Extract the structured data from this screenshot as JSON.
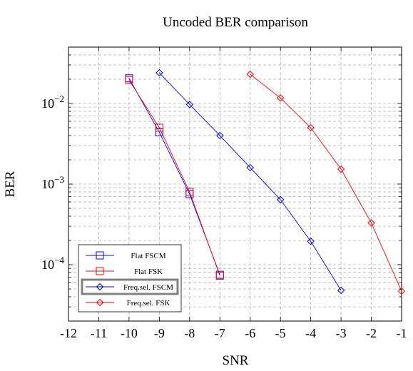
{
  "chart_data": {
    "type": "line",
    "title": "Uncoded BER comparison",
    "xlabel": "SNR",
    "ylabel": "BER",
    "xlim": [
      -12,
      -1
    ],
    "ylim": [
      2e-05,
      0.05
    ],
    "yscale": "log",
    "x_ticks": [
      -12,
      -11,
      -10,
      -9,
      -8,
      -7,
      -6,
      -5,
      -4,
      -3,
      -2,
      -1
    ],
    "x_tick_labels": [
      "-12",
      "-11",
      "-10",
      "-9",
      "-8",
      "-7",
      "-6",
      "-5",
      "-4",
      "-3",
      "-2",
      "-1"
    ],
    "y_ticks": [
      0.01,
      0.001,
      0.0001
    ],
    "y_tick_labels": [
      {
        "base": "10",
        "exp": "−2"
      },
      {
        "base": "10",
        "exp": "−3"
      },
      {
        "base": "10",
        "exp": "−4"
      }
    ],
    "grid": true,
    "legend_position": "bottom-left",
    "series": [
      {
        "name": "Flat FSCM",
        "color": "#0000ff",
        "marker": "square",
        "x": [
          -10,
          -9,
          -8,
          -7
        ],
        "y": [
          0.0205,
          0.0044,
          0.00075,
          7.5e-05
        ]
      },
      {
        "name": "Flat FSK",
        "color": "#ff0000",
        "marker": "square",
        "x": [
          -10,
          -9,
          -8,
          -7
        ],
        "y": [
          0.0195,
          0.005,
          0.0008,
          7.3e-05
        ]
      },
      {
        "name": "Freq.sel. FSCM",
        "color": "#0000ff",
        "marker": "diamond",
        "x": [
          -9,
          -8,
          -7,
          -6,
          -5,
          -4,
          -3
        ],
        "y": [
          0.024,
          0.0097,
          0.004,
          0.0016,
          0.00064,
          0.000195,
          4.8e-05
        ]
      },
      {
        "name": "Freq.sel. FSK",
        "color": "#ff0000",
        "marker": "diamond",
        "x": [
          -6,
          -5,
          -4,
          -3,
          -2,
          -1
        ],
        "y": [
          0.023,
          0.0117,
          0.005,
          0.00153,
          0.00033,
          4.7e-05
        ]
      }
    ]
  }
}
